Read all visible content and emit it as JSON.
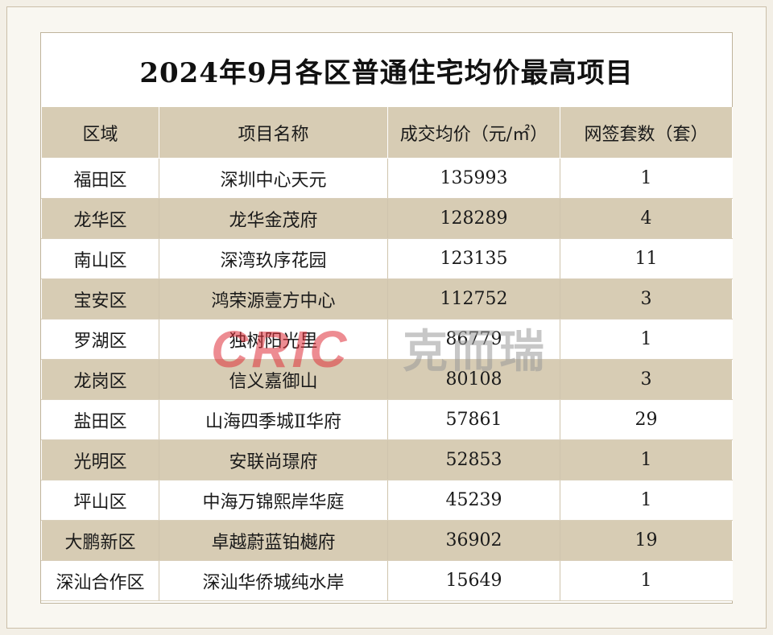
{
  "title": "2024年9月各区普通住宅均价最高项目",
  "headers": [
    "区域",
    "项目名称",
    "成交均价（元/㎡）",
    "网签套数（套）"
  ],
  "rows": [
    {
      "district": "福田区",
      "project": "深圳中心天元",
      "avg_price": "135993",
      "units": "1"
    },
    {
      "district": "龙华区",
      "project": "龙华金茂府",
      "avg_price": "128289",
      "units": "4"
    },
    {
      "district": "南山区",
      "project": "深湾玖序花园",
      "avg_price": "123135",
      "units": "11"
    },
    {
      "district": "宝安区",
      "project": "鸿荣源壹方中心",
      "avg_price": "112752",
      "units": "3"
    },
    {
      "district": "罗湖区",
      "project": "独树阳光里",
      "avg_price": "86779",
      "units": "1"
    },
    {
      "district": "龙岗区",
      "project": "信义嘉御山",
      "avg_price": "80108",
      "units": "3"
    },
    {
      "district": "盐田区",
      "project": "山海四季城Ⅱ华府",
      "avg_price": "57861",
      "units": "29"
    },
    {
      "district": "光明区",
      "project": "安联尚璟府",
      "avg_price": "52853",
      "units": "1"
    },
    {
      "district": "坪山区",
      "project": "中海万锦熙岸华庭",
      "avg_price": "45239",
      "units": "1"
    },
    {
      "district": "大鹏新区",
      "project": "卓越蔚蓝铂樾府",
      "avg_price": "36902",
      "units": "19"
    },
    {
      "district": "深汕合作区",
      "project": "深汕华侨城纯水岸",
      "avg_price": "15649",
      "units": "1"
    }
  ],
  "watermark": {
    "logo_text": "CRIC",
    "brand_text": "克而瑞",
    "logo_color": "#e0303a",
    "brand_color": "#9a9a9a"
  },
  "colors": {
    "header_bg": "#d7ccb4",
    "stripe_bg": "#d7ccb4",
    "page_bg": "#f3efe6"
  }
}
